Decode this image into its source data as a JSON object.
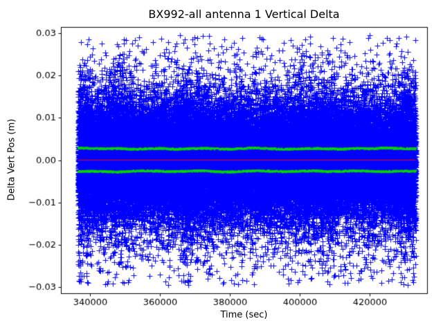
{
  "chart_data": {
    "type": "scatter",
    "title": "BX992-all antenna 1 Vertical Delta",
    "xlabel": "Time (sec)",
    "ylabel": "Delta Vert Pos (m)",
    "xlim": [
      331700,
      436500
    ],
    "ylim": [
      -0.0315,
      0.0315
    ],
    "xticks": {
      "values": [
        340000,
        360000,
        380000,
        400000,
        420000
      ],
      "labels": [
        "340000",
        "360000",
        "380000",
        "400000",
        "420000"
      ]
    },
    "yticks": {
      "values": [
        0.03,
        0.02,
        0.01,
        0.0,
        -0.01,
        -0.02,
        -0.03
      ],
      "labels": [
        "0.03",
        "0.02",
        "0.01",
        "0.00",
        "−0.01",
        "−0.02",
        "−0.03"
      ]
    },
    "grid": false,
    "legend": "none",
    "series": [
      {
        "name": "vertical-delta",
        "kind": "noise-scatter",
        "marker": "+",
        "color": "#0000ff",
        "marker_half_px": 4,
        "n_points": 55000,
        "t_range": [
          336600,
          433300
        ],
        "y_extent": [
          -0.0295,
          0.026
        ],
        "envelope_t": [
          336600,
          340000,
          344000,
          348000,
          352000,
          356000,
          360000,
          364000,
          368000,
          372000,
          376000,
          380000,
          384000,
          388000,
          392000,
          396000,
          400000,
          404000,
          408000,
          412000,
          416000,
          420000,
          424000,
          428000,
          433300
        ],
        "envelope_std": [
          0.0075,
          0.0062,
          0.006,
          0.0072,
          0.0062,
          0.0055,
          0.0063,
          0.006,
          0.0072,
          0.0068,
          0.006,
          0.0062,
          0.0058,
          0.006,
          0.0062,
          0.0058,
          0.0068,
          0.006,
          0.0072,
          0.0058,
          0.006,
          0.0062,
          0.0058,
          0.006,
          0.0078
        ],
        "neg_scale": 1.06
      },
      {
        "name": "upper-band",
        "kind": "dot-band",
        "marker": ".",
        "color": "#00d400",
        "t": [
          336600,
          340000,
          344000,
          348000,
          352000,
          356000,
          360000,
          364000,
          368000,
          372000,
          376000,
          380000,
          384000,
          388000,
          392000,
          396000,
          400000,
          404000,
          408000,
          412000,
          416000,
          420000,
          424000,
          428000,
          433300
        ],
        "y": [
          0.0029,
          0.0028,
          0.0027,
          0.0028,
          0.0026,
          0.0027,
          0.0028,
          0.0026,
          0.0027,
          0.0028,
          0.0027,
          0.0026,
          0.0028,
          0.0029,
          0.0027,
          0.0026,
          0.0027,
          0.0028,
          0.0027,
          0.0026,
          0.0028,
          0.0027,
          0.0029,
          0.0028,
          0.0027
        ]
      },
      {
        "name": "lower-band",
        "kind": "dot-band",
        "marker": ".",
        "color": "#00d400",
        "t": [
          336600,
          340000,
          344000,
          348000,
          352000,
          356000,
          360000,
          364000,
          368000,
          372000,
          376000,
          380000,
          384000,
          388000,
          392000,
          396000,
          400000,
          404000,
          408000,
          412000,
          416000,
          420000,
          424000,
          428000,
          433300
        ],
        "y": [
          -0.0027,
          -0.0026,
          -0.0027,
          -0.0028,
          -0.0026,
          -0.0025,
          -0.0026,
          -0.0027,
          -0.0026,
          -0.0025,
          -0.0027,
          -0.0028,
          -0.0026,
          -0.0025,
          -0.0026,
          -0.0027,
          -0.0026,
          -0.0025,
          -0.0027,
          -0.0026,
          -0.0025,
          -0.0026,
          -0.0027,
          -0.0026,
          -0.0026
        ]
      },
      {
        "name": "zero-line",
        "kind": "hline",
        "color": "#ff0000",
        "y": 0.0,
        "t_range": [
          336600,
          433300
        ]
      }
    ],
    "axis_color": "#000000",
    "background_color": "#ffffff"
  }
}
